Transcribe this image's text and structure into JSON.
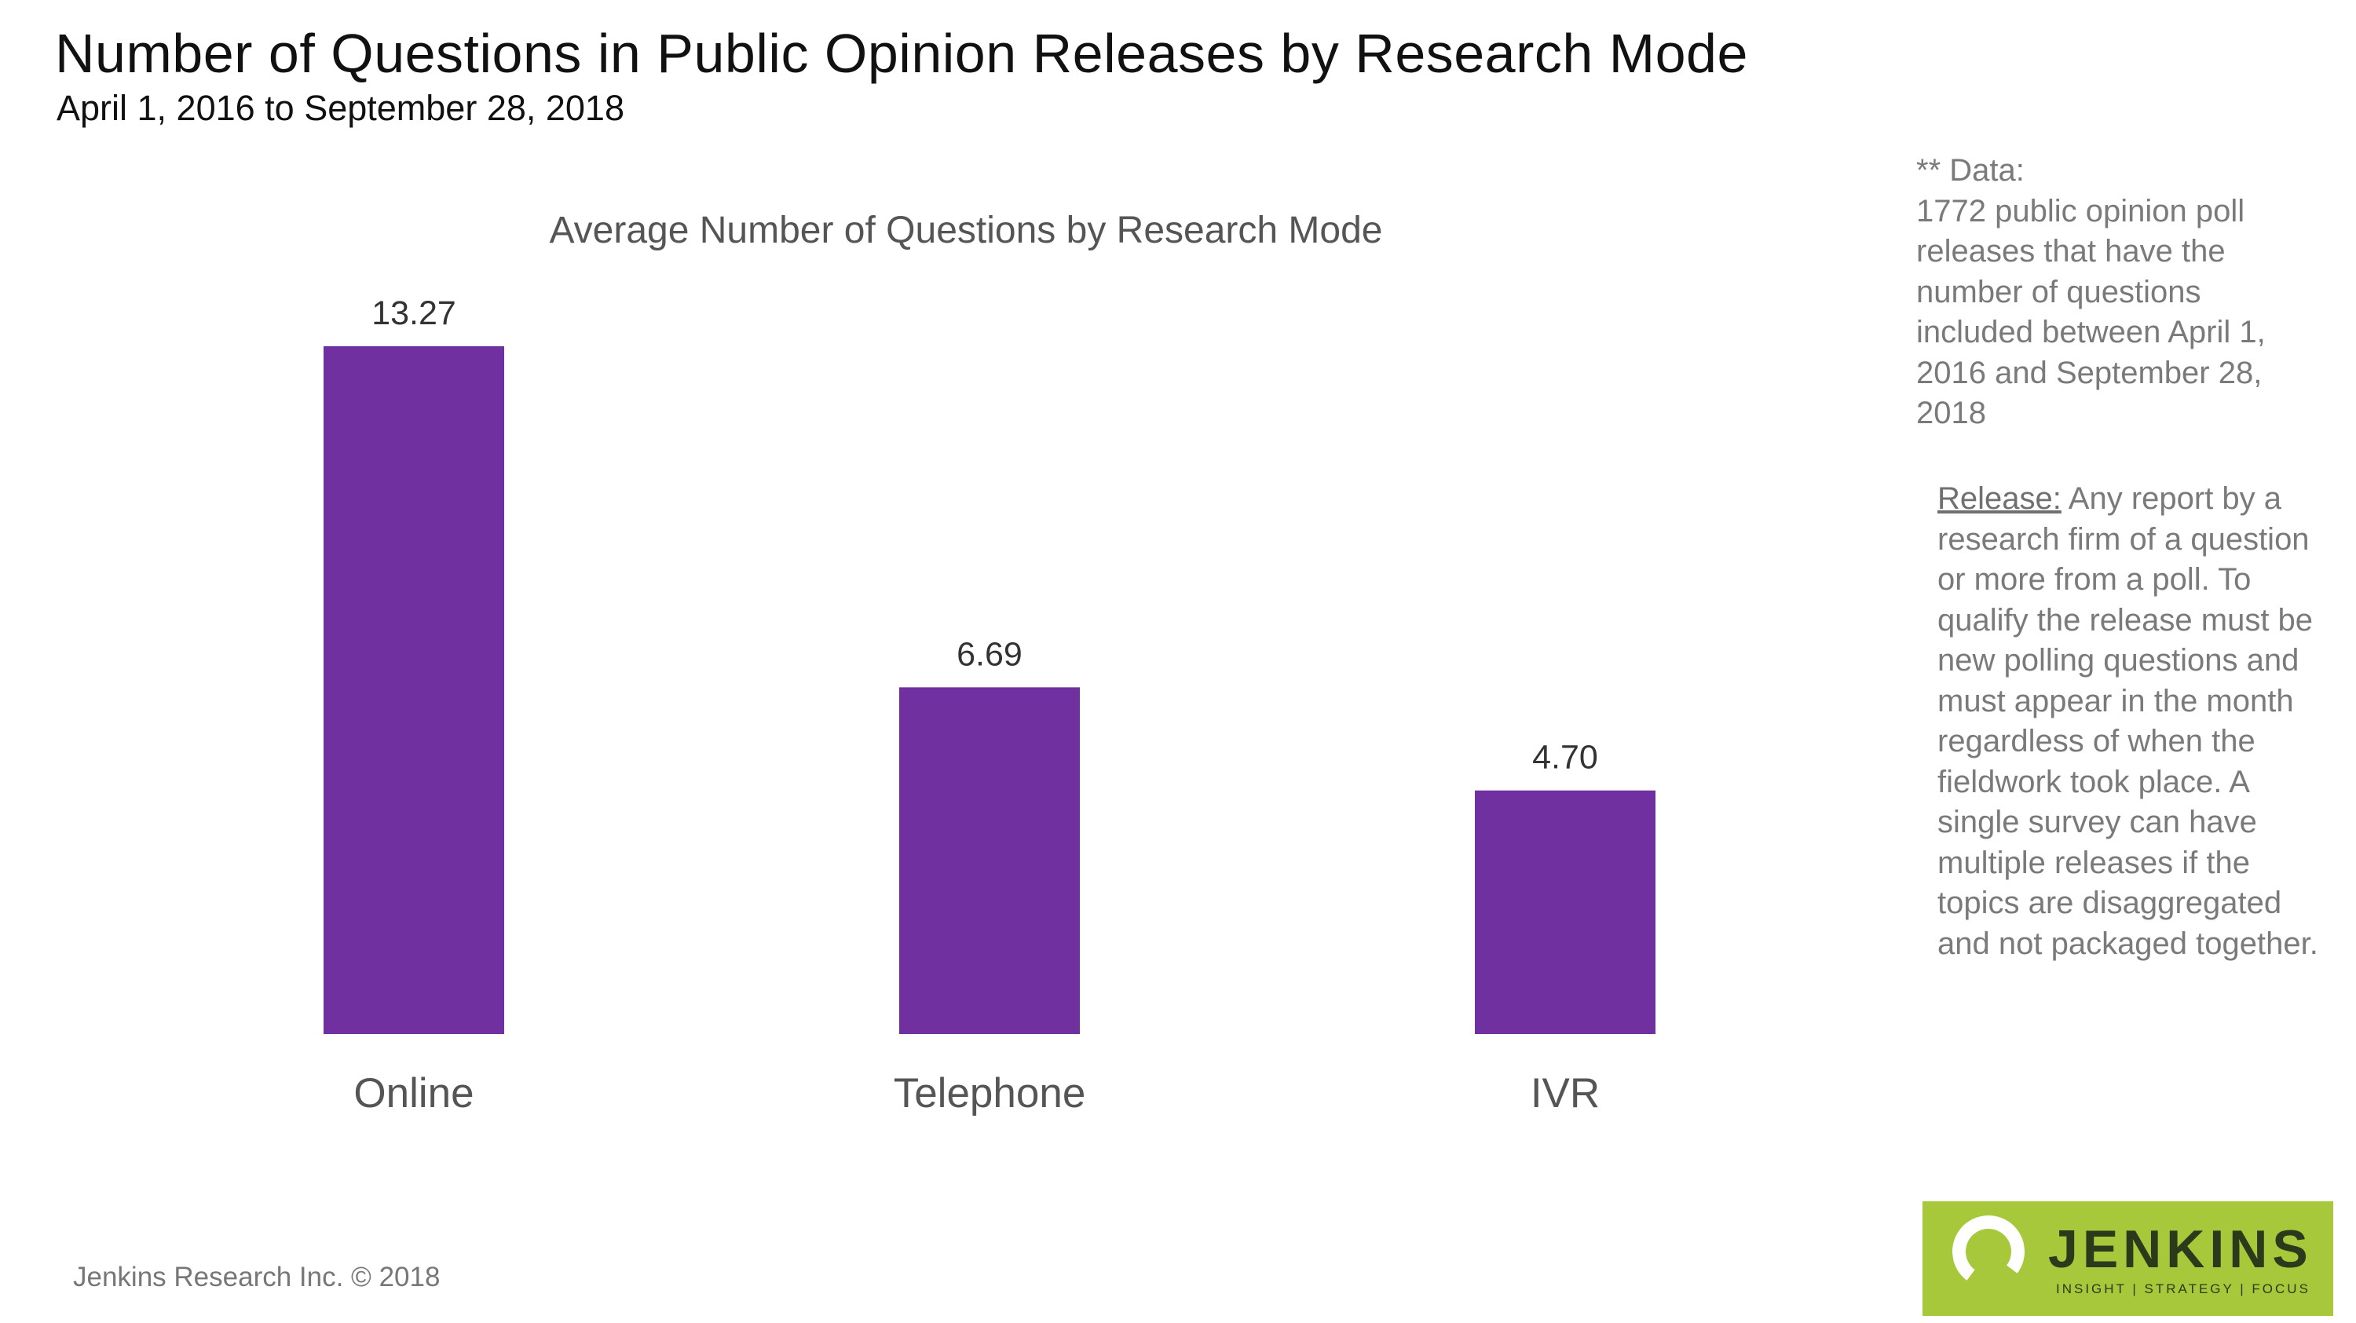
{
  "header": {
    "title": "Number of Questions in Public Opinion Releases by Research Mode",
    "subtitle": "April 1, 2016 to September  28, 2018"
  },
  "chart_data": {
    "type": "bar",
    "title": "Average Number of Questions by Research Mode",
    "categories": [
      "Online",
      "Telephone",
      "IVR"
    ],
    "values": [
      13.27,
      6.69,
      4.7
    ],
    "value_labels": [
      "13.27",
      "6.69",
      "4.70"
    ],
    "xlabel": "",
    "ylabel": "",
    "ylim": [
      0,
      13.27
    ],
    "grid": false,
    "legend": "none",
    "bar_color": "#7030a0"
  },
  "notes": {
    "data_label": "** Data:",
    "data_text": "1772 public opinion poll releases that have the number of questions included between April 1, 2016 and September 28, 2018",
    "release_term": "Release:",
    "release_text": " Any report by a research firm of a question or more from a poll. To qualify the release must be new polling questions and must appear in the month regardless of when the fieldwork took place. A single survey can have multiple releases if the topics are disaggregated and not packaged together."
  },
  "footer": {
    "copyright": "Jenkins Research Inc. © 2018"
  },
  "logo": {
    "word": "JENKINS",
    "tagline": "INSIGHT | STRATEGY | FOCUS",
    "background": "#a8c83c"
  }
}
